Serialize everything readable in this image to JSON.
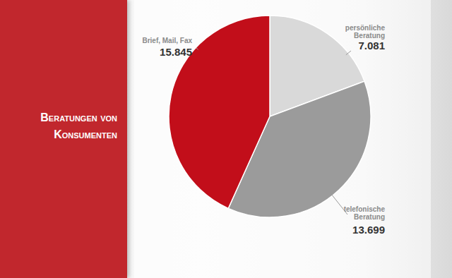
{
  "chart_data": {
    "type": "pie",
    "title": "Beratungen von Konsumenten",
    "categories": [
      "persönliche Beratung",
      "telefonische Beratung",
      "Brief, Mail, Fax"
    ],
    "values": [
      7081,
      13699,
      15845
    ],
    "value_labels": [
      "7.081",
      "13.699",
      "15.845"
    ],
    "colors": [
      "#d9d9d9",
      "#9b9b9b",
      "#c20e1a"
    ],
    "data_labels": true
  }
}
